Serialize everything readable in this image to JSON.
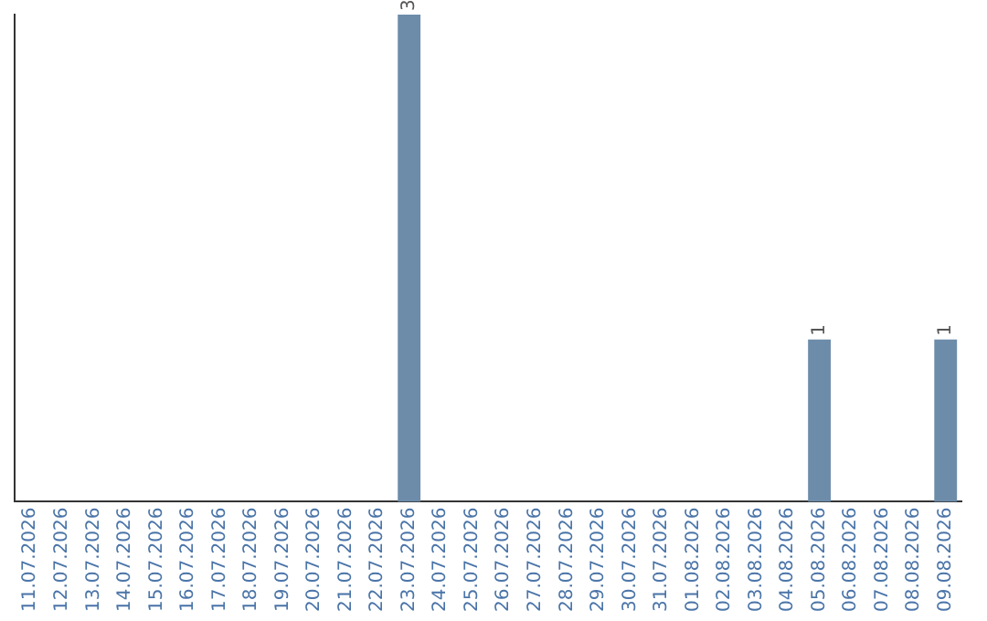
{
  "chart_data": {
    "type": "bar",
    "categories": [
      "11.07.2026",
      "12.07.2026",
      "13.07.2026",
      "14.07.2026",
      "15.07.2026",
      "16.07.2026",
      "17.07.2026",
      "18.07.2026",
      "19.07.2026",
      "20.07.2026",
      "21.07.2026",
      "22.07.2026",
      "23.07.2026",
      "24.07.2026",
      "25.07.2026",
      "26.07.2026",
      "27.07.2026",
      "28.07.2026",
      "29.07.2026",
      "30.07.2026",
      "31.07.2026",
      "01.08.2026",
      "02.08.2026",
      "03.08.2026",
      "04.08.2026",
      "05.08.2026",
      "06.08.2026",
      "07.08.2026",
      "08.08.2026",
      "09.08.2026"
    ],
    "values": [
      null,
      null,
      null,
      null,
      null,
      null,
      null,
      null,
      null,
      null,
      null,
      null,
      3,
      null,
      null,
      null,
      null,
      null,
      null,
      null,
      null,
      null,
      null,
      null,
      null,
      1,
      null,
      null,
      null,
      1
    ],
    "data_labels": true,
    "color": "#6d8caa",
    "tick_labels": "x",
    "grid": false,
    "legend": false
  }
}
